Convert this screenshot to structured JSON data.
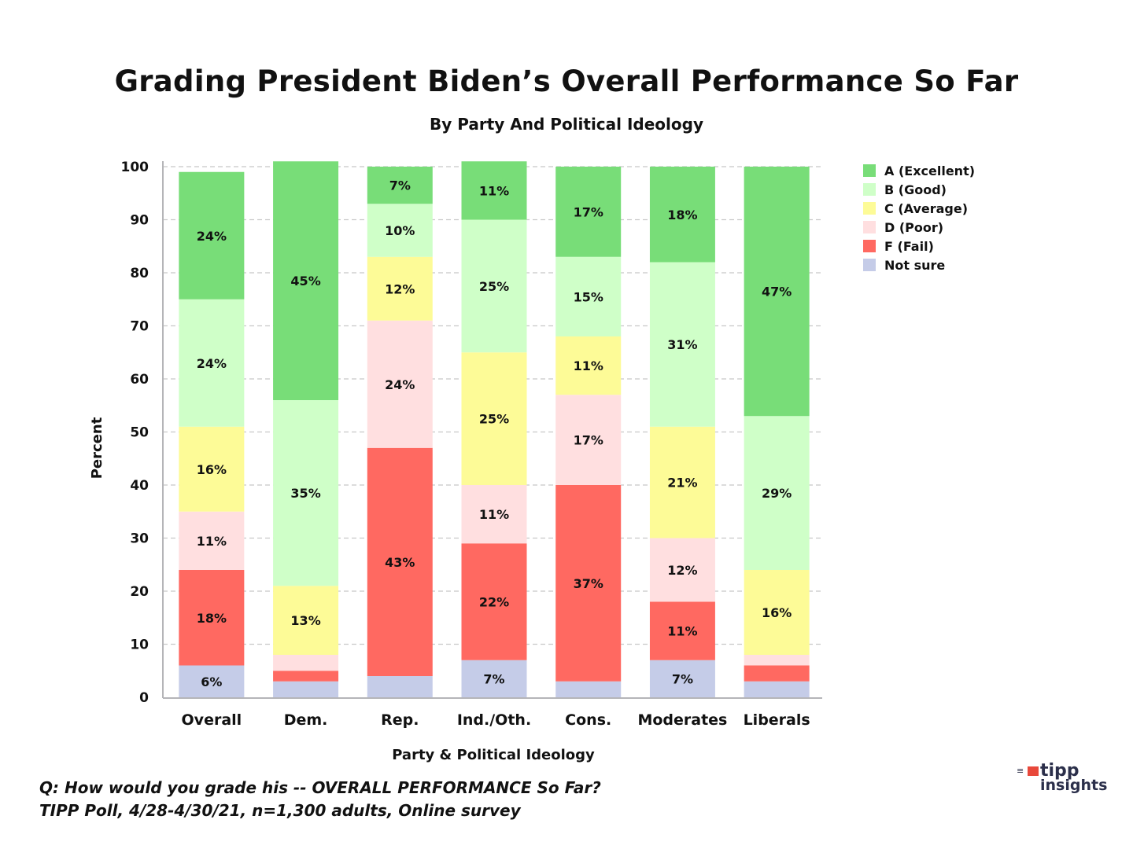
{
  "chart_data": {
    "type": "bar",
    "stacked": true,
    "title": "Grading President Biden’s Overall Performance So Far",
    "subtitle": "By Party And Political Ideology",
    "xlabel": "Party & Political Ideology",
    "ylabel": "Percent",
    "ylim": [
      0,
      100
    ],
    "yticks": [
      0,
      10,
      20,
      30,
      40,
      50,
      60,
      70,
      80,
      90,
      100
    ],
    "grid": true,
    "legend_position": "top-right",
    "categories": [
      "Overall",
      "Dem.",
      "Rep.",
      "Ind./Oth.",
      "Cons.",
      "Moderates",
      "Liberals"
    ],
    "series": [
      {
        "name": "Not sure",
        "color": "#c5cce8",
        "values": [
          6,
          3,
          4,
          7,
          3,
          7,
          3
        ],
        "labels": [
          "6%",
          "",
          "",
          "7%",
          "",
          "7%",
          ""
        ]
      },
      {
        "name": "F (Fail)",
        "color": "#ff6961",
        "values": [
          18,
          2,
          43,
          22,
          37,
          11,
          3
        ],
        "labels": [
          "18%",
          "",
          "43%",
          "22%",
          "37%",
          "11%",
          ""
        ]
      },
      {
        "name": "D (Poor)",
        "color": "#ffdfe0",
        "values": [
          11,
          3,
          24,
          11,
          17,
          12,
          2
        ],
        "labels": [
          "11%",
          "",
          "24%",
          "11%",
          "17%",
          "12%",
          ""
        ]
      },
      {
        "name": "C (Average)",
        "color": "#fdfb97",
        "values": [
          16,
          13,
          12,
          25,
          11,
          21,
          16
        ],
        "labels": [
          "16%",
          "13%",
          "12%",
          "25%",
          "11%",
          "21%",
          "16%"
        ]
      },
      {
        "name": "B (Good)",
        "color": "#cfffc8",
        "values": [
          24,
          35,
          10,
          25,
          15,
          31,
          29
        ],
        "labels": [
          "24%",
          "35%",
          "10%",
          "25%",
          "15%",
          "31%",
          "29%"
        ]
      },
      {
        "name": "A (Excellent)",
        "color": "#78dd78",
        "values": [
          24,
          45,
          7,
          11,
          17,
          18,
          47
        ],
        "labels": [
          "24%",
          "45%",
          "7%",
          "11%",
          "17%",
          "18%",
          "47%"
        ]
      }
    ],
    "legend_order": [
      "A (Excellent)",
      "B (Good)",
      "C (Average)",
      "D (Poor)",
      "F (Fail)",
      "Not sure"
    ]
  },
  "footnote": {
    "question": "Q:  How would you grade his -- OVERALL PERFORMANCE So Far?",
    "source": "TIPP Poll, 4/28-4/30/21, n=1,300 adults, Online survey"
  },
  "logo": {
    "line1": "tipp",
    "line2": "insights"
  }
}
